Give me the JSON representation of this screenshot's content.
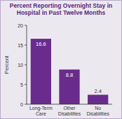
{
  "chart_data": {
    "type": "bar",
    "title": "Percent Reporting Overnight Stay in Hospital in Past Twelve Months",
    "y_label": "Percent",
    "categories": [
      "Long-Term Care",
      "Other Disabilities",
      "No Disabilities"
    ],
    "values": [
      16.6,
      8.8,
      2.4
    ],
    "color": "#6a2c8c",
    "ylim": [
      0,
      20
    ],
    "yticks": [
      0,
      5,
      10,
      15,
      20
    ],
    "grid": false,
    "data_labels": true
  }
}
